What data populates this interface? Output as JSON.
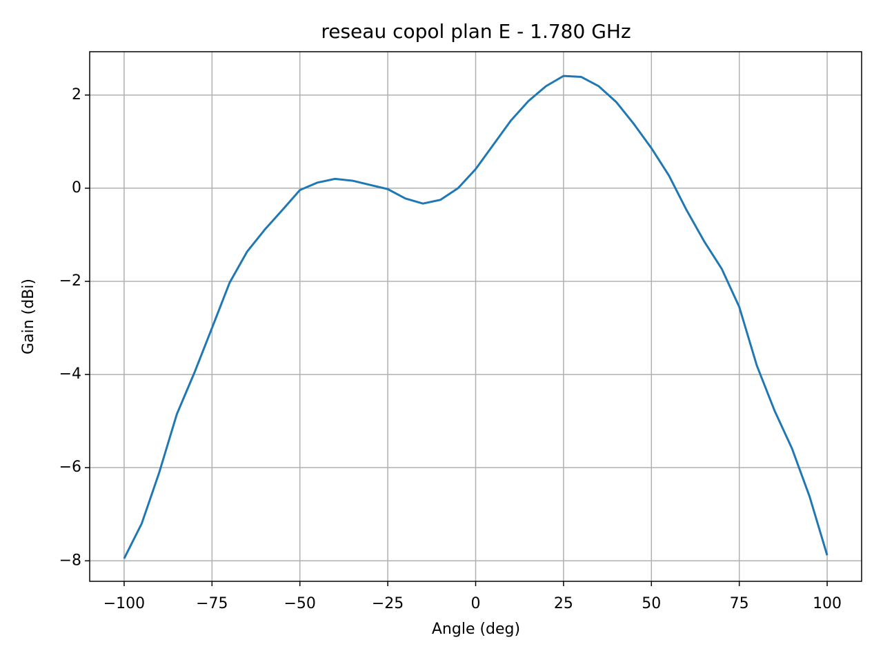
{
  "chart_data": {
    "type": "line",
    "title": "reseau copol plan E - 1.780 GHz",
    "xlabel": "Angle (deg)",
    "ylabel": "Gain (dBi)",
    "x": [
      -100,
      -95,
      -90,
      -85,
      -80,
      -75,
      -70,
      -65,
      -60,
      -55,
      -50,
      -45,
      -40,
      -35,
      -30,
      -25,
      -20,
      -15,
      -10,
      -5,
      0,
      5,
      10,
      15,
      20,
      25,
      30,
      35,
      40,
      45,
      50,
      55,
      60,
      65,
      70,
      75,
      80,
      85,
      90,
      95,
      100
    ],
    "series": [
      {
        "color": "#1f77b4",
        "values": [
          -7.95,
          -7.2,
          -6.1,
          -4.85,
          -3.96,
          -3.0,
          -2.03,
          -1.36,
          -0.89,
          -0.47,
          -0.04,
          0.12,
          0.2,
          0.16,
          0.07,
          -0.02,
          -0.22,
          -0.33,
          -0.25,
          0.0,
          0.41,
          0.93,
          1.45,
          1.87,
          2.19,
          2.41,
          2.39,
          2.19,
          1.85,
          1.38,
          0.86,
          0.27,
          -0.47,
          -1.14,
          -1.73,
          -2.55,
          -3.81,
          -4.77,
          -5.59,
          -6.62,
          -7.88
        ]
      }
    ],
    "xlim": [
      -109.8,
      109.8
    ],
    "ylim": [
      -8.44,
      2.93
    ],
    "xticks": [
      {
        "value": -100,
        "label": "−100"
      },
      {
        "value": -75,
        "label": "−75"
      },
      {
        "value": -50,
        "label": "−50"
      },
      {
        "value": -25,
        "label": "−25"
      },
      0,
      25,
      50,
      75,
      100
    ],
    "yticks": [
      {
        "value": -8,
        "label": "−8"
      },
      {
        "value": -6,
        "label": "−6"
      },
      {
        "value": -4,
        "label": "−4"
      },
      {
        "value": -2,
        "label": "−2"
      },
      0,
      2
    ],
    "grid": true
  }
}
